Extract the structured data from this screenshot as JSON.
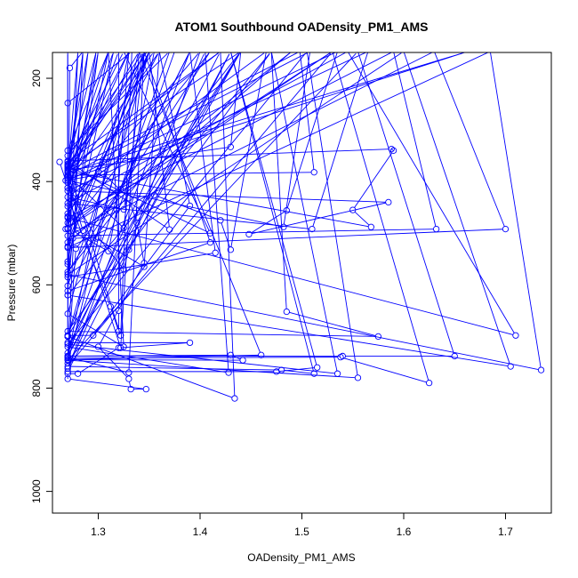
{
  "chart_data": {
    "type": "scatter",
    "title": "ATOM1 Southbound OADensity_PM1_AMS",
    "xlabel": "OADensity_PM1_AMS",
    "ylabel": "Pressure (mbar)",
    "xlim": [
      1.255,
      1.745
    ],
    "ylim": [
      1042,
      150
    ],
    "y_reversed": true,
    "xticks": [
      {
        "value": 1.3,
        "label": "1.3"
      },
      {
        "value": 1.4,
        "label": "1.4"
      },
      {
        "value": 1.5,
        "label": "1.5"
      },
      {
        "value": 1.6,
        "label": "1.6"
      },
      {
        "value": 1.7,
        "label": "1.7"
      }
    ],
    "yticks": [
      {
        "value": 200,
        "label": "200"
      },
      {
        "value": 400,
        "label": "400"
      },
      {
        "value": 600,
        "label": "600"
      },
      {
        "value": 800,
        "label": "800"
      },
      {
        "value": 1000,
        "label": "1000"
      }
    ],
    "grid": false,
    "legend": "none",
    "series": [
      {
        "color": "#0000ff",
        "marker": "open-circle",
        "connect": "line",
        "points": [
          [
            1.262,
            362
          ],
          [
            1.268,
            398
          ],
          [
            1.305,
            385
          ],
          [
            1.33,
            432
          ],
          [
            1.338,
            480
          ],
          [
            1.345,
            558
          ],
          [
            1.3,
            720
          ],
          [
            1.33,
            782
          ],
          [
            1.332,
            802
          ],
          [
            1.347,
            802
          ],
          [
            1.27,
            782
          ],
          [
            1.27,
            772
          ],
          [
            1.28,
            772
          ],
          [
            1.32,
            722
          ],
          [
            1.39,
            712
          ],
          [
            1.27,
            712
          ],
          [
            1.27,
            698
          ],
          [
            1.295,
            698
          ],
          [
            1.39,
            447
          ],
          [
            1.36,
            148
          ],
          [
            1.268,
            492
          ],
          [
            1.27,
            462
          ],
          [
            1.3,
            380
          ],
          [
            1.35,
            148
          ],
          [
            1.27,
            602
          ],
          [
            1.275,
            510
          ],
          [
            1.3,
            508
          ],
          [
            1.325,
            570
          ],
          [
            1.33,
            532
          ],
          [
            1.4,
            148
          ],
          [
            1.27,
            448
          ],
          [
            1.28,
            495
          ],
          [
            1.33,
            432
          ],
          [
            1.355,
            426
          ],
          [
            1.42,
            475
          ],
          [
            1.43,
            532
          ],
          [
            1.465,
            148
          ],
          [
            1.27,
            430
          ],
          [
            1.312,
            642
          ],
          [
            1.32,
            690
          ],
          [
            1.32,
            650
          ],
          [
            1.32,
            148
          ],
          [
            1.27,
            412
          ],
          [
            1.298,
            510
          ],
          [
            1.345,
            565
          ],
          [
            1.36,
            148
          ],
          [
            1.27,
            402
          ],
          [
            1.285,
            495
          ],
          [
            1.322,
            722
          ],
          [
            1.34,
            148
          ],
          [
            1.27,
            383
          ],
          [
            1.278,
            500
          ],
          [
            1.31,
            535
          ],
          [
            1.318,
            455
          ],
          [
            1.33,
            148
          ],
          [
            1.27,
            375
          ],
          [
            1.272,
            392
          ],
          [
            1.325,
            490
          ],
          [
            1.345,
            148
          ],
          [
            1.27,
            350
          ],
          [
            1.275,
            432
          ],
          [
            1.325,
            454
          ],
          [
            1.355,
            148
          ],
          [
            1.27,
            366
          ],
          [
            1.276,
            410
          ],
          [
            1.322,
            698
          ],
          [
            1.333,
            148
          ],
          [
            1.27,
            248
          ],
          [
            1.27,
            388
          ],
          [
            1.28,
            148
          ],
          [
            1.27,
            620
          ],
          [
            1.27,
            560
          ],
          [
            1.27,
            148
          ],
          [
            1.27,
            700
          ],
          [
            1.272,
            180
          ],
          [
            1.285,
            148
          ],
          [
            1.27,
            740
          ],
          [
            1.33,
            770
          ],
          [
            1.345,
            148
          ],
          [
            1.27,
            752
          ],
          [
            1.278,
            530
          ],
          [
            1.322,
            415
          ],
          [
            1.39,
            148
          ],
          [
            1.27,
            762
          ],
          [
            1.34,
            455
          ],
          [
            1.44,
            148
          ],
          [
            1.27,
            738
          ],
          [
            1.43,
            736
          ],
          [
            1.442,
            746
          ],
          [
            1.27,
            745
          ],
          [
            1.46,
            736
          ],
          [
            1.34,
            148
          ],
          [
            1.27,
            656
          ],
          [
            1.325,
            720
          ],
          [
            1.31,
            148
          ],
          [
            1.27,
            526
          ],
          [
            1.35,
            148
          ],
          [
            1.27,
            468
          ],
          [
            1.3,
            148
          ],
          [
            1.27,
            585
          ],
          [
            1.415,
            538
          ],
          [
            1.39,
            148
          ],
          [
            1.27,
            612
          ],
          [
            1.41,
            518
          ],
          [
            1.345,
            148
          ],
          [
            1.27,
            518
          ],
          [
            1.49,
            148
          ],
          [
            1.27,
            490
          ],
          [
            1.53,
            148
          ],
          [
            1.27,
            480
          ],
          [
            1.29,
            148
          ],
          [
            1.27,
            370
          ],
          [
            1.41,
            500
          ],
          [
            1.325,
            148
          ],
          [
            1.27,
            362
          ],
          [
            1.42,
            148
          ],
          [
            1.27,
            378
          ],
          [
            1.43,
            333
          ],
          [
            1.44,
            148
          ],
          [
            1.27,
            372
          ],
          [
            1.27,
            555
          ],
          [
            1.315,
            148
          ],
          [
            1.27,
            395
          ],
          [
            1.66,
            150
          ],
          [
            1.27,
            382
          ],
          [
            1.348,
            148
          ],
          [
            1.27,
            368
          ],
          [
            1.298,
            148
          ],
          [
            1.27,
            492
          ],
          [
            1.41,
            148
          ],
          [
            1.27,
            575
          ],
          [
            1.44,
            148
          ],
          [
            1.27,
            700
          ],
          [
            1.37,
            148
          ],
          [
            1.27,
            340
          ],
          [
            1.31,
            148
          ],
          [
            1.27,
            392
          ],
          [
            1.285,
            148
          ],
          [
            1.27,
            412
          ],
          [
            1.33,
            148
          ],
          [
            1.27,
            742
          ],
          [
            1.538,
            740
          ],
          [
            1.625,
            790
          ],
          [
            1.53,
            148
          ],
          [
            1.27,
            758
          ],
          [
            1.48,
            765
          ],
          [
            1.512,
            772
          ],
          [
            1.43,
            148
          ],
          [
            1.27,
            768
          ],
          [
            1.475,
            768
          ],
          [
            1.515,
            760
          ],
          [
            1.43,
            148
          ],
          [
            1.27,
            738
          ],
          [
            1.54,
            738
          ],
          [
            1.65,
            738
          ],
          [
            1.555,
            148
          ],
          [
            1.27,
            746
          ],
          [
            1.555,
            780
          ],
          [
            1.505,
            148
          ],
          [
            1.27,
            715
          ],
          [
            1.535,
            772
          ],
          [
            1.47,
            148
          ],
          [
            1.27,
            690
          ],
          [
            1.575,
            700
          ],
          [
            1.485,
            652
          ],
          [
            1.47,
            148
          ],
          [
            1.27,
            620
          ],
          [
            1.705,
            758
          ],
          [
            1.6,
            148
          ],
          [
            1.27,
            580
          ],
          [
            1.735,
            765
          ],
          [
            1.685,
            148
          ],
          [
            1.27,
            528
          ],
          [
            1.7,
            492
          ],
          [
            1.63,
            148
          ],
          [
            1.27,
            505
          ],
          [
            1.632,
            492
          ],
          [
            1.59,
            148
          ],
          [
            1.27,
            470
          ],
          [
            1.71,
            698
          ],
          [
            1.545,
            148
          ],
          [
            1.27,
            442
          ],
          [
            1.51,
            492
          ],
          [
            1.565,
            148
          ],
          [
            1.27,
            418
          ],
          [
            1.585,
            440
          ],
          [
            1.448,
            502
          ],
          [
            1.485,
            456
          ],
          [
            1.535,
            148
          ],
          [
            1.27,
            398
          ],
          [
            1.482,
            488
          ],
          [
            1.508,
            148
          ],
          [
            1.27,
            388
          ],
          [
            1.512,
            382
          ],
          [
            1.498,
            148
          ],
          [
            1.27,
            380
          ],
          [
            1.568,
            488
          ],
          [
            1.55,
            455
          ],
          [
            1.59,
            340
          ],
          [
            1.588,
            337
          ],
          [
            1.27,
            360
          ],
          [
            1.37,
            493
          ],
          [
            1.35,
            148
          ],
          [
            1.27,
            700
          ],
          [
            1.434,
            820
          ],
          [
            1.42,
            148
          ],
          [
            1.27,
            720
          ],
          [
            1.428,
            770
          ],
          [
            1.405,
            148
          ],
          [
            1.27,
            732
          ],
          [
            1.375,
            148
          ]
        ]
      }
    ]
  }
}
